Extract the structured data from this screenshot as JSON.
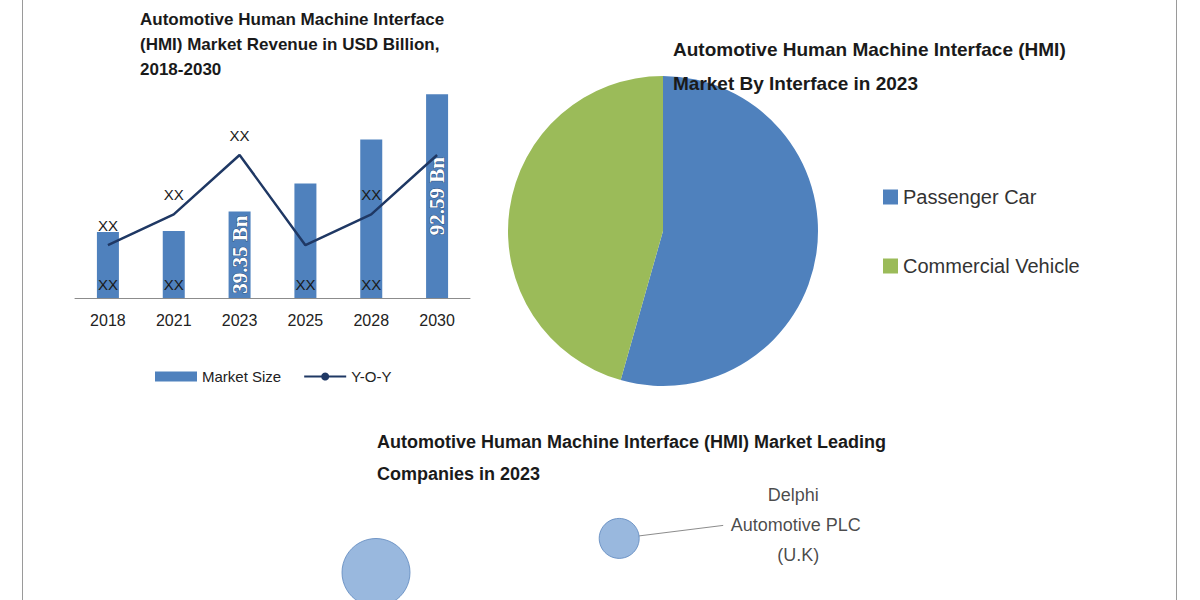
{
  "chart_data": [
    {
      "type": "bar",
      "title": "Automotive Human Machine Interface (HMI) Market Revenue in USD Billion, 2018-2030",
      "categories": [
        "2018",
        "2021",
        "2023",
        "2025",
        "2028",
        "2030"
      ],
      "series": [
        {
          "name": "Market Size",
          "type": "bar",
          "color": "#4f81bd",
          "values": [
            30,
            30.5,
            39.35,
            52,
            72,
            92.59
          ],
          "value_labels": [
            "XX",
            "XX",
            "39.35 Bn",
            "XX",
            "XX",
            "92.59 Bn"
          ]
        },
        {
          "name": "Y-O-Y",
          "type": "line",
          "color": "#1f3864",
          "axis": "y2",
          "values": [
            24,
            38,
            65,
            24,
            38,
            65
          ],
          "value_labels": [
            "XX",
            "XX",
            "XX",
            null,
            "XX",
            null
          ]
        }
      ],
      "ylim": [
        0,
        100
      ],
      "yticks": [],
      "y2lim": [
        0,
        100
      ],
      "y2ticks": [],
      "grid": false,
      "legend": "bottom",
      "data_labels": true,
      "tick_labels": "x"
    },
    {
      "type": "pie",
      "title": "Automotive Human Machine Interface (HMI) Market By Interface in 2023",
      "categories": [
        "Passenger Car",
        "Commercial Vehicle"
      ],
      "values": [
        54.4,
        45.6
      ],
      "colors": [
        "#4f81bd",
        "#9bbb59"
      ],
      "legend": "right",
      "data_labels": false
    },
    {
      "type": "scatter",
      "title": "Automotive Human Machine Interface (HMI) Market Leading Companies in 2023",
      "x": [
        5.3,
        1.5
      ],
      "y": [
        5.6,
        2.5
      ],
      "sizes": [
        20,
        34
      ],
      "labels": [
        "Delphi Automotive PLC (U.K)",
        null
      ],
      "color": "#7fa6d6",
      "xlim": [
        0,
        10
      ],
      "ylim": [
        0,
        10
      ],
      "xticks": [],
      "yticks": [],
      "grid": false,
      "tick_labels": false
    }
  ]
}
